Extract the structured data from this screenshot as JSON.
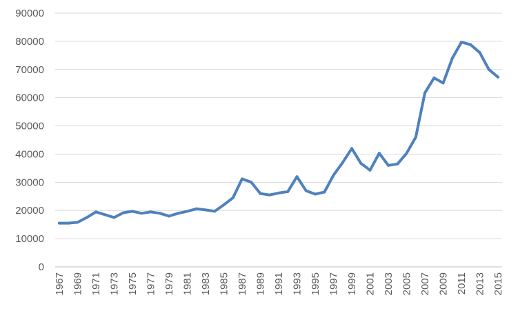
{
  "chart_data": {
    "type": "line",
    "title": "",
    "xlabel": "",
    "ylabel": "",
    "ylim": [
      0,
      90000
    ],
    "y_ticks": [
      "0",
      "10000",
      "20000",
      "30000",
      "40000",
      "50000",
      "60000",
      "70000",
      "80000",
      "90000"
    ],
    "x_tick_labels": [
      "1967",
      "1969",
      "1971",
      "1973",
      "1975",
      "1977",
      "1979",
      "1981",
      "1983",
      "1985",
      "1987",
      "1989",
      "1991",
      "1993",
      "1995",
      "1997",
      "1999",
      "2001",
      "2003",
      "2005",
      "2007",
      "2009",
      "2011",
      "2013",
      "2015"
    ],
    "grid": true,
    "legend": "none",
    "series": [
      {
        "color": "#4f81bd",
        "x": [
          1967,
          1968,
          1969,
          1970,
          1971,
          1972,
          1973,
          1974,
          1975,
          1976,
          1977,
          1978,
          1979,
          1980,
          1981,
          1982,
          1983,
          1984,
          1985,
          1986,
          1987,
          1988,
          1989,
          1990,
          1991,
          1992,
          1993,
          1994,
          1995,
          1996,
          1997,
          1998,
          1999,
          2000,
          2001,
          2002,
          2003,
          2004,
          2005,
          2006,
          2007,
          2008,
          2009,
          2010,
          2011,
          2012,
          2013,
          2014,
          2015
        ],
        "values": [
          15500,
          15500,
          15800,
          17500,
          19500,
          18500,
          17500,
          19200,
          19700,
          19000,
          19500,
          19000,
          18000,
          19000,
          19700,
          20600,
          20200,
          19700,
          22000,
          24500,
          31200,
          30000,
          26000,
          25500,
          26200,
          26700,
          32000,
          27000,
          25800,
          26500,
          32500,
          37000,
          42000,
          36700,
          34300,
          40300,
          36000,
          36500,
          40300,
          46000,
          61700,
          67000,
          65200,
          74000,
          79700,
          78800,
          76000,
          70000,
          67300
        ]
      }
    ]
  }
}
